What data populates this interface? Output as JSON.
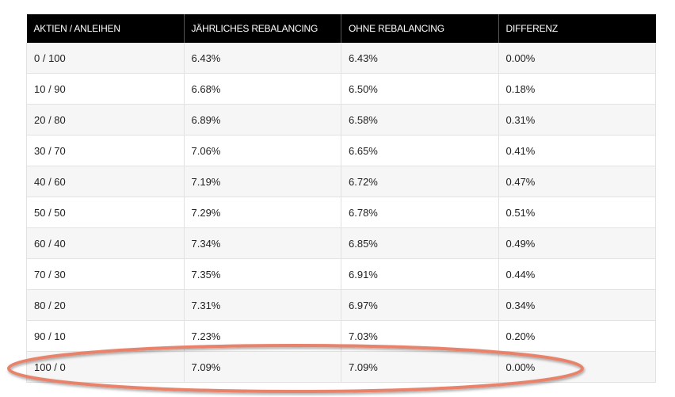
{
  "table": {
    "headers": [
      "AKTIEN / ANLEIHEN",
      "JÄHRLICHES REBALANCING",
      "OHNE REBALANCING",
      "DIFFERENZ"
    ],
    "rows": [
      [
        "0 / 100",
        "6.43%",
        "6.43%",
        "0.00%"
      ],
      [
        "10 / 90",
        "6.68%",
        "6.50%",
        "0.18%"
      ],
      [
        "20 / 80",
        "6.89%",
        "6.58%",
        "0.31%"
      ],
      [
        "30 / 70",
        "7.06%",
        "6.65%",
        "0.41%"
      ],
      [
        "40 / 60",
        "7.19%",
        "6.72%",
        "0.47%"
      ],
      [
        "50 / 50",
        "7.29%",
        "6.78%",
        "0.51%"
      ],
      [
        "60 / 40",
        "7.34%",
        "6.85%",
        "0.49%"
      ],
      [
        "70 / 30",
        "7.35%",
        "6.91%",
        "0.44%"
      ],
      [
        "80 / 20",
        "7.31%",
        "6.97%",
        "0.34%"
      ],
      [
        "90 / 10",
        "7.23%",
        "7.03%",
        "0.20%"
      ],
      [
        "100 / 0",
        "7.09%",
        "7.09%",
        "0.00%"
      ]
    ]
  },
  "highlight": {
    "color": "#e8826a",
    "row_index": 10
  }
}
